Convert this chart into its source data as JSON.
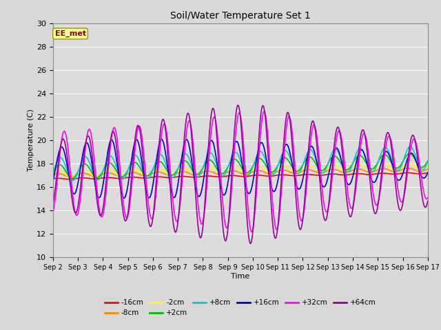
{
  "title": "Soil/Water Temperature Set 1",
  "xlabel": "Time",
  "ylabel": "Temperature (C)",
  "ylim": [
    10,
    30
  ],
  "annotation": "EE_met",
  "series": {
    "-16cm": {
      "color": "#ff0000",
      "lw": 1.2
    },
    "-8cm": {
      "color": "#ff8800",
      "lw": 1.2
    },
    "-2cm": {
      "color": "#ffff00",
      "lw": 1.2
    },
    "+2cm": {
      "color": "#00bb00",
      "lw": 1.2
    },
    "+8cm": {
      "color": "#00cccc",
      "lw": 1.2
    },
    "+16cm": {
      "color": "#0000cc",
      "lw": 1.2
    },
    "+32cm": {
      "color": "#ff00ff",
      "lw": 1.2
    },
    "+64cm": {
      "color": "#990099",
      "lw": 1.2
    }
  },
  "xtick_labels": [
    "Sep 2",
    "Sep 3",
    "Sep 4",
    "Sep 5",
    "Sep 6",
    "Sep 7",
    "Sep 8",
    "Sep 9",
    "Sep 10",
    "Sep 11",
    "Sep 12",
    "Sep 13",
    "Sep 14",
    "Sep 15",
    "Sep 16",
    "Sep 17"
  ],
  "ytick_labels": [
    10,
    12,
    14,
    16,
    18,
    20,
    22,
    24,
    26,
    28,
    30
  ],
  "bg_color": "#dcdcdc",
  "grid_color": "#ffffff",
  "fig_bg": "#d8d8d8"
}
